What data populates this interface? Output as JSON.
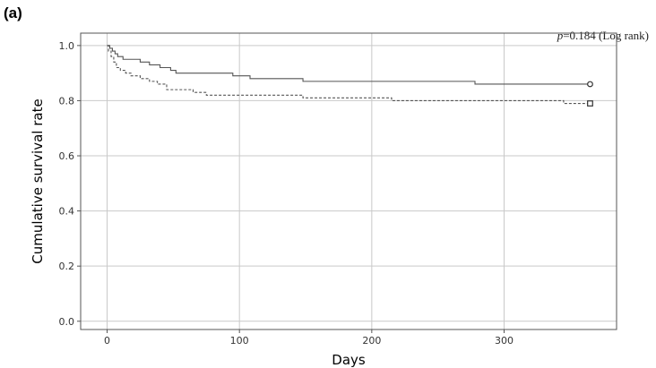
{
  "panel_label": "(a)",
  "annotation": {
    "p_prefix": "p",
    "p_rest": "=0.184 (Log rank)"
  },
  "chart_data": {
    "type": "line",
    "title": "",
    "xlabel": "Days",
    "ylabel": "Cumulative survival rate",
    "xlim": [
      -20,
      385
    ],
    "ylim": [
      -0.03,
      1.045
    ],
    "xticks": [
      0,
      100,
      200,
      300
    ],
    "yticks": [
      0.0,
      0.2,
      0.4,
      0.6,
      0.8,
      1.0
    ],
    "ytick_labels": [
      "0.0",
      "0.2",
      "0.4",
      "0.6",
      "0.8",
      "1.0"
    ],
    "grid": true,
    "series": [
      {
        "style": "solid",
        "color": "#555555",
        "censor_marker": "circle",
        "censor_at": [
          365,
          0.86
        ],
        "steps": [
          [
            0,
            1.0
          ],
          [
            2,
            0.99
          ],
          [
            4,
            0.98
          ],
          [
            6,
            0.97
          ],
          [
            8,
            0.96
          ],
          [
            12,
            0.95
          ],
          [
            25,
            0.94
          ],
          [
            32,
            0.93
          ],
          [
            40,
            0.92
          ],
          [
            48,
            0.91
          ],
          [
            52,
            0.9
          ],
          [
            95,
            0.89
          ],
          [
            108,
            0.88
          ],
          [
            148,
            0.87
          ],
          [
            278,
            0.86
          ],
          [
            365,
            0.86
          ]
        ]
      },
      {
        "style": "dashed",
        "color": "#555555",
        "censor_marker": "square",
        "censor_at": [
          365,
          0.79
        ],
        "steps": [
          [
            0,
            1.0
          ],
          [
            1,
            0.98
          ],
          [
            3,
            0.96
          ],
          [
            5,
            0.94
          ],
          [
            7,
            0.92
          ],
          [
            10,
            0.91
          ],
          [
            14,
            0.9
          ],
          [
            18,
            0.89
          ],
          [
            25,
            0.88
          ],
          [
            32,
            0.87
          ],
          [
            38,
            0.86
          ],
          [
            45,
            0.84
          ],
          [
            65,
            0.83
          ],
          [
            75,
            0.82
          ],
          [
            100,
            0.82
          ],
          [
            148,
            0.81
          ],
          [
            215,
            0.8
          ],
          [
            345,
            0.79
          ],
          [
            365,
            0.79
          ]
        ]
      }
    ]
  }
}
